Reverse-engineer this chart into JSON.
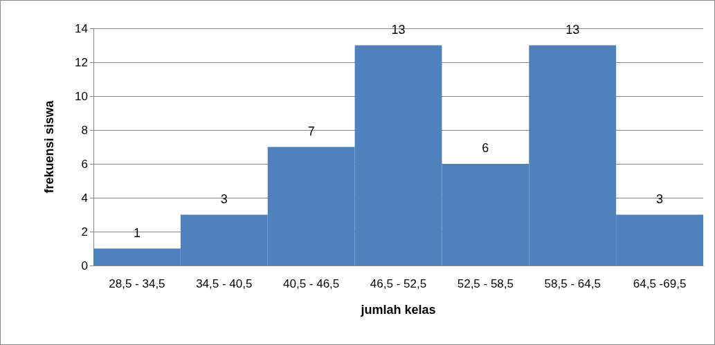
{
  "chart_data": {
    "type": "bar",
    "xlabel": "jumlah kelas",
    "ylabel": "frekuensi siswa",
    "categories": [
      "28,5 - 34,5",
      "34,5 - 40,5",
      "40,5 - 46,5",
      "46,5 - 52,5",
      "52,5 - 58,5",
      "58,5 - 64,5",
      "64,5 -69,5"
    ],
    "values": [
      1,
      3,
      7,
      13,
      6,
      13,
      3
    ],
    "color": "#4f81bd",
    "ylim": [
      0,
      14
    ],
    "yticks": [
      0,
      2,
      4,
      6,
      8,
      10,
      12,
      14
    ],
    "grid": "y",
    "data_labels": true
  }
}
